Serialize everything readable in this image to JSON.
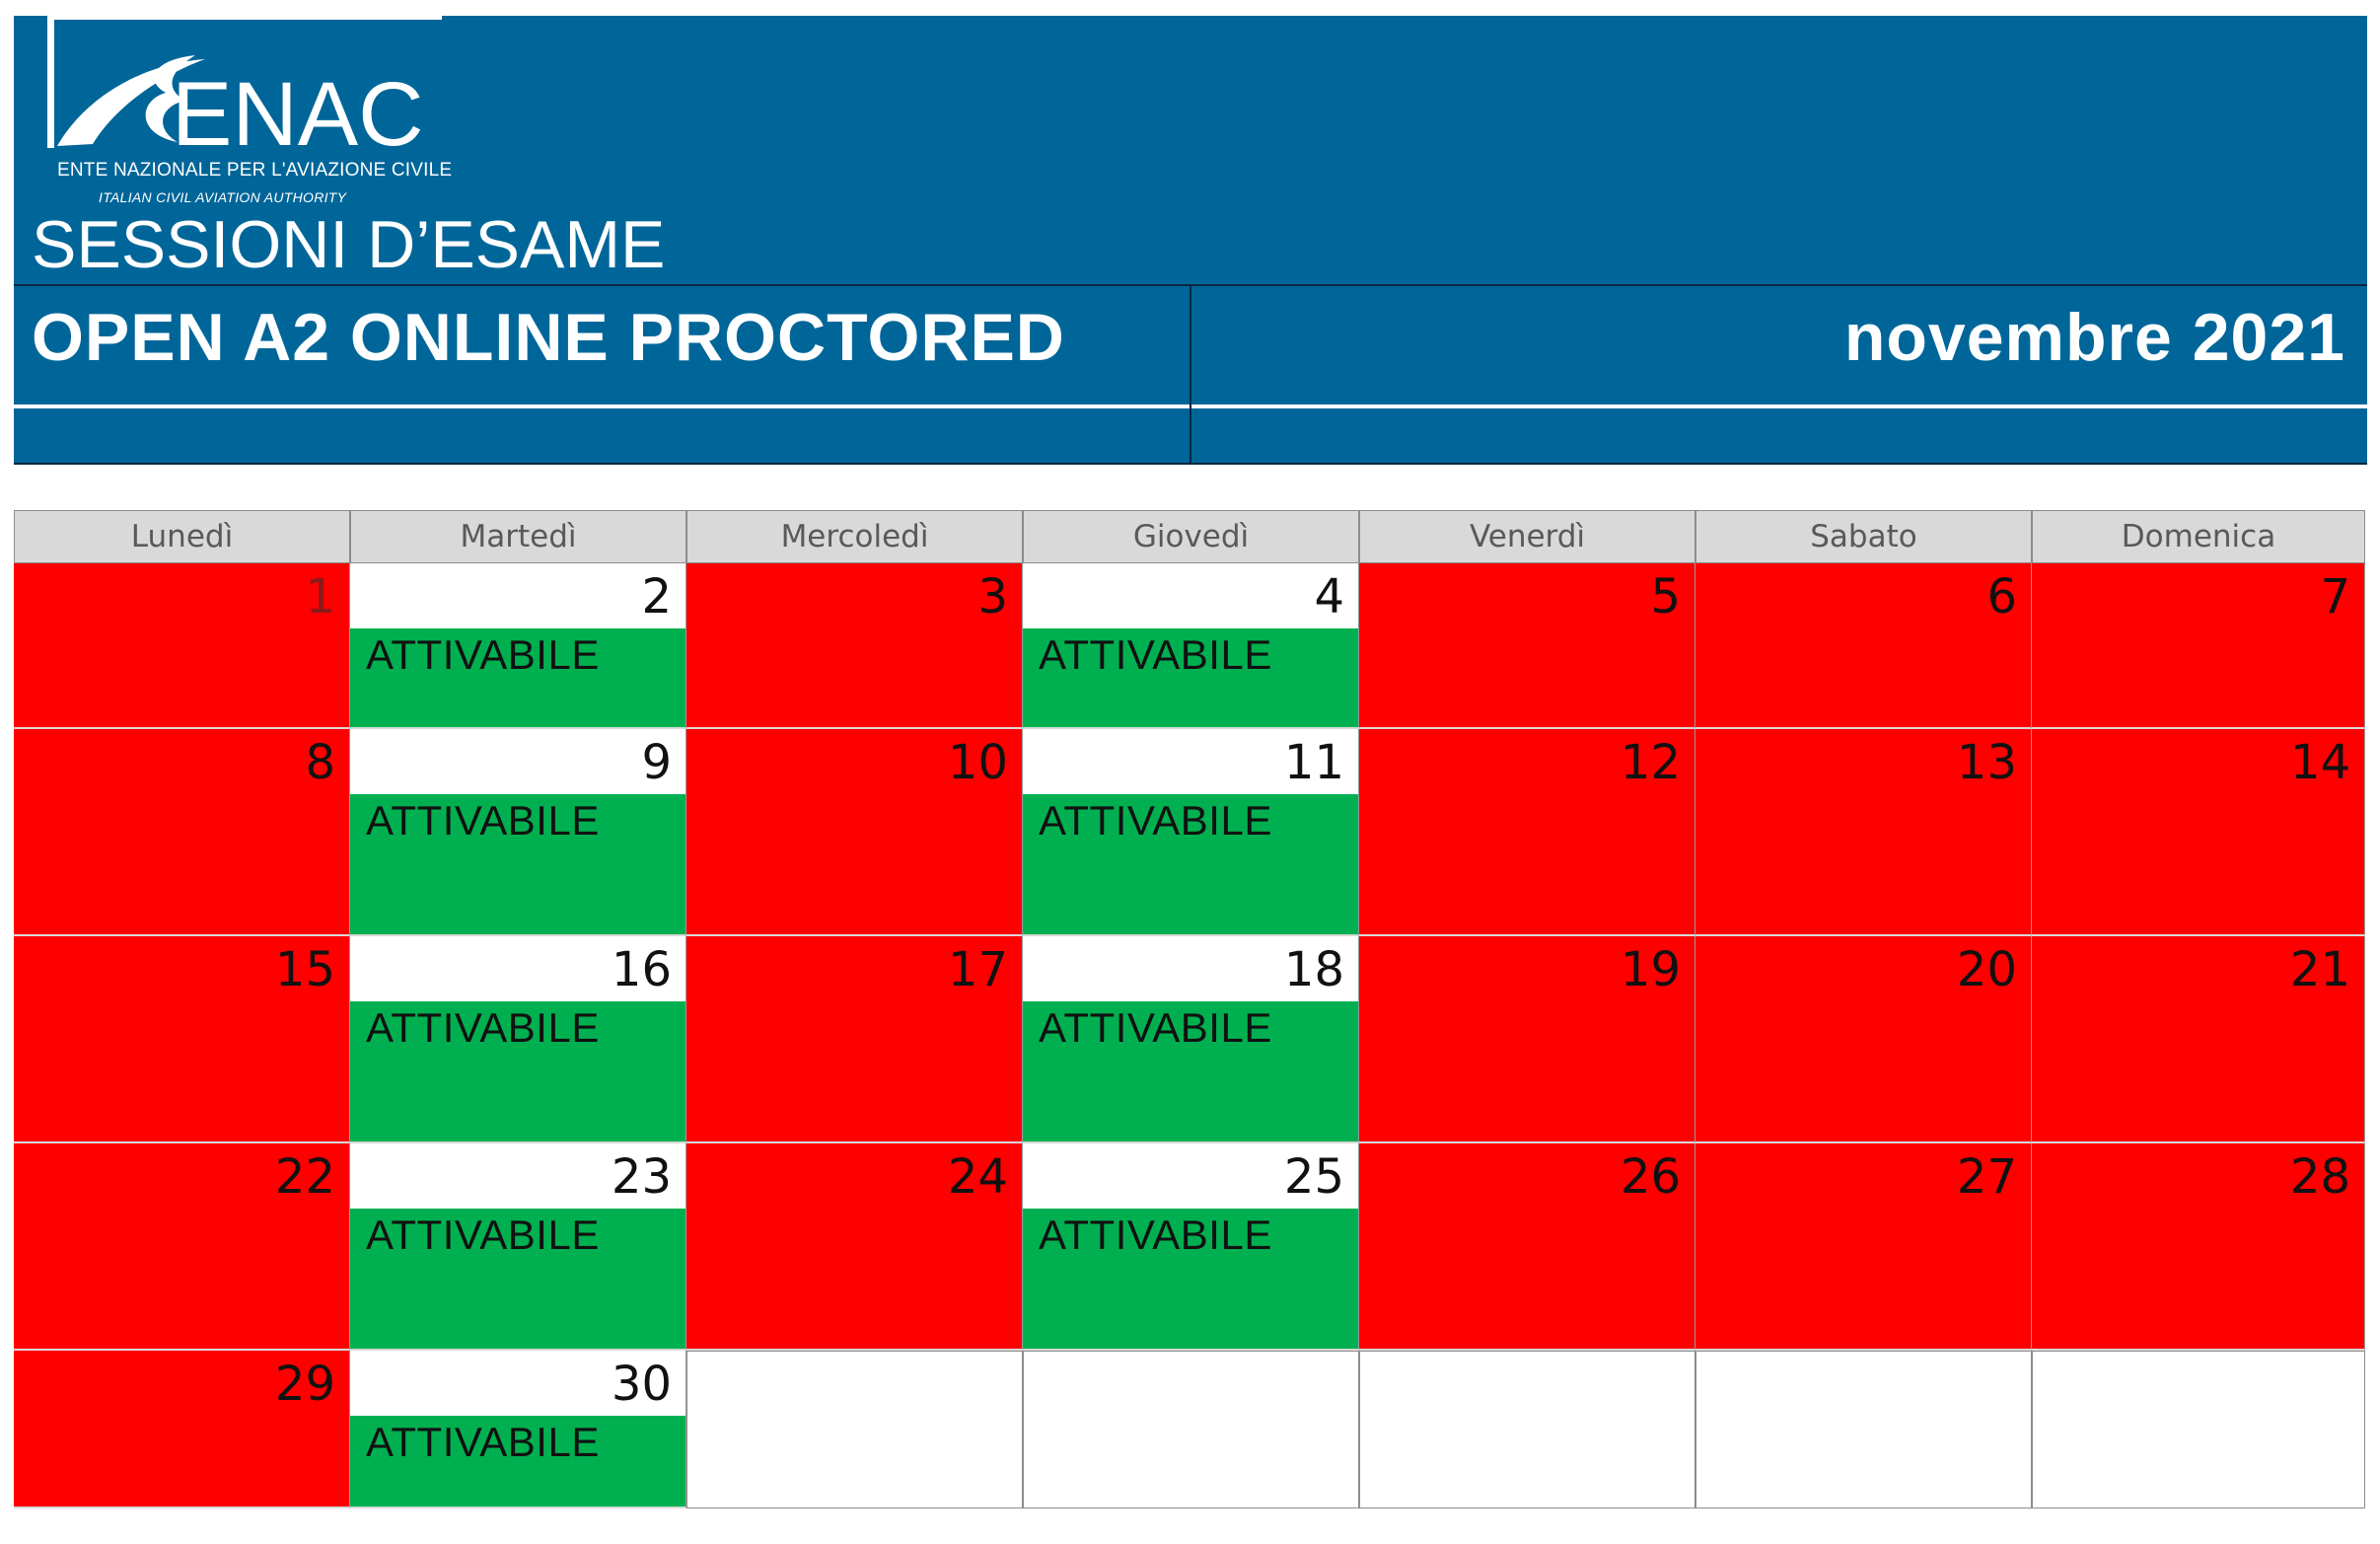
{
  "logo": {
    "word": "ENAC",
    "line1": "ENTE NAZIONALE PER L'AVIAZIONE CIVILE",
    "line2": "ITALIAN CIVIL AVIATION AUTHORITY"
  },
  "header": {
    "subtitle": "SESSIONI D’ESAME",
    "title": "OPEN A2 ONLINE PROCTORED",
    "month": "novembre 2021"
  },
  "calendar": {
    "weekdays": [
      "Lunedì",
      "Martedì",
      "Mercoledì",
      "Giovedì",
      "Venerdì",
      "Sabato",
      "Domenica"
    ],
    "status_label": "ATTIVABILE",
    "colors": {
      "unavailable": "#ff0000",
      "available": "#00b050",
      "header_bg": "#006699"
    },
    "weeks": [
      [
        {
          "day": "1",
          "status": "unavailable"
        },
        {
          "day": "2",
          "status": "available"
        },
        {
          "day": "3",
          "status": "unavailable"
        },
        {
          "day": "4",
          "status": "available"
        },
        {
          "day": "5",
          "status": "unavailable"
        },
        {
          "day": "6",
          "status": "unavailable"
        },
        {
          "day": "7",
          "status": "unavailable"
        }
      ],
      [
        {
          "day": "8",
          "status": "unavailable"
        },
        {
          "day": "9",
          "status": "available"
        },
        {
          "day": "10",
          "status": "unavailable"
        },
        {
          "day": "11",
          "status": "available"
        },
        {
          "day": "12",
          "status": "unavailable"
        },
        {
          "day": "13",
          "status": "unavailable"
        },
        {
          "day": "14",
          "status": "unavailable"
        }
      ],
      [
        {
          "day": "15",
          "status": "unavailable"
        },
        {
          "day": "16",
          "status": "available"
        },
        {
          "day": "17",
          "status": "unavailable"
        },
        {
          "day": "18",
          "status": "available"
        },
        {
          "day": "19",
          "status": "unavailable"
        },
        {
          "day": "20",
          "status": "unavailable"
        },
        {
          "day": "21",
          "status": "unavailable"
        }
      ],
      [
        {
          "day": "22",
          "status": "unavailable"
        },
        {
          "day": "23",
          "status": "available"
        },
        {
          "day": "24",
          "status": "unavailable"
        },
        {
          "day": "25",
          "status": "available"
        },
        {
          "day": "26",
          "status": "unavailable"
        },
        {
          "day": "27",
          "status": "unavailable"
        },
        {
          "day": "28",
          "status": "unavailable"
        }
      ],
      [
        {
          "day": "29",
          "status": "unavailable"
        },
        {
          "day": "30",
          "status": "available"
        },
        {
          "day": "",
          "status": "empty"
        },
        {
          "day": "",
          "status": "empty"
        },
        {
          "day": "",
          "status": "empty"
        },
        {
          "day": "",
          "status": "empty"
        },
        {
          "day": "",
          "status": "empty"
        }
      ]
    ]
  }
}
